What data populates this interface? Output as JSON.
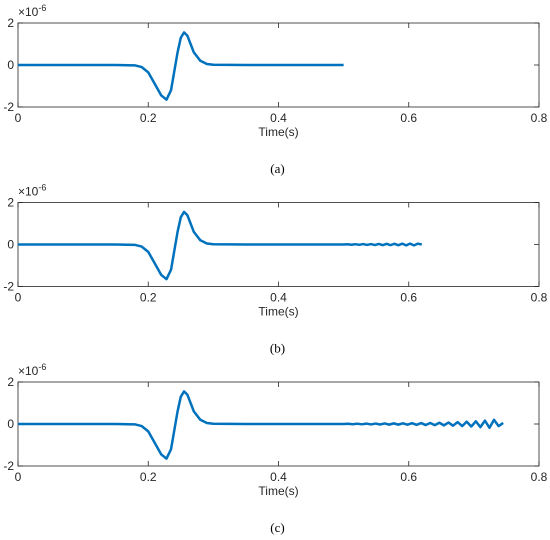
{
  "chart_data": [
    {
      "type": "line",
      "y_multiplier": "×10",
      "y_exponent": "-6",
      "xlabel": "Time(s)",
      "caption": "(a)",
      "xlim": [
        0,
        0.8
      ],
      "xticks": [
        0,
        0.2,
        0.4,
        0.6,
        0.8
      ],
      "ylim": [
        -2,
        2
      ],
      "yticks": [
        -2,
        0,
        2
      ],
      "series": [
        {
          "color": "#0072bd",
          "x": [
            0,
            0.05,
            0.1,
            0.15,
            0.18,
            0.19,
            0.2,
            0.21,
            0.22,
            0.228,
            0.235,
            0.24,
            0.245,
            0.25,
            0.255,
            0.26,
            0.265,
            0.27,
            0.28,
            0.29,
            0.3,
            0.35,
            0.4,
            0.45,
            0.5
          ],
          "values": [
            0,
            0,
            0,
            0,
            -0.02,
            -0.1,
            -0.35,
            -0.9,
            -1.45,
            -1.65,
            -1.2,
            -0.3,
            0.6,
            1.3,
            1.55,
            1.4,
            1.0,
            0.6,
            0.2,
            0.05,
            0.01,
            0,
            0,
            0,
            0
          ]
        }
      ]
    },
    {
      "type": "line",
      "y_multiplier": "×10",
      "y_exponent": "-6",
      "xlabel": "Time(s)",
      "caption": "(b)",
      "xlim": [
        0,
        0.8
      ],
      "xticks": [
        0,
        0.2,
        0.4,
        0.6,
        0.8
      ],
      "ylim": [
        -2,
        2
      ],
      "yticks": [
        -2,
        0,
        2
      ],
      "series": [
        {
          "color": "#0072bd",
          "x": [
            0,
            0.05,
            0.1,
            0.15,
            0.18,
            0.19,
            0.2,
            0.21,
            0.22,
            0.228,
            0.235,
            0.24,
            0.245,
            0.25,
            0.255,
            0.26,
            0.265,
            0.27,
            0.28,
            0.29,
            0.3,
            0.35,
            0.4,
            0.45,
            0.5,
            0.506,
            0.512,
            0.518,
            0.524,
            0.53,
            0.536,
            0.542,
            0.548,
            0.554,
            0.56,
            0.566,
            0.572,
            0.578,
            0.584,
            0.59,
            0.596,
            0.602,
            0.608,
            0.614,
            0.62
          ],
          "values": [
            0,
            0,
            0,
            0,
            -0.02,
            -0.1,
            -0.35,
            -0.9,
            -1.45,
            -1.65,
            -1.2,
            -0.3,
            0.6,
            1.3,
            1.55,
            1.4,
            1.0,
            0.6,
            0.2,
            0.05,
            0.01,
            0,
            0,
            0,
            0,
            0.01,
            -0.01,
            0.015,
            -0.015,
            0.02,
            -0.02,
            0.02,
            -0.025,
            0.025,
            -0.03,
            0.03,
            -0.03,
            0.035,
            -0.035,
            0.04,
            -0.04,
            0.04,
            -0.04,
            0.04,
            0
          ]
        }
      ]
    },
    {
      "type": "line",
      "y_multiplier": "×10",
      "y_exponent": "-6",
      "xlabel": "Time(s)",
      "caption": "(c)",
      "xlim": [
        0,
        0.8
      ],
      "xticks": [
        0,
        0.2,
        0.4,
        0.6,
        0.8
      ],
      "ylim": [
        -2,
        2
      ],
      "yticks": [
        -2,
        0,
        2
      ],
      "series": [
        {
          "color": "#0072bd",
          "x": [
            0,
            0.05,
            0.1,
            0.15,
            0.18,
            0.19,
            0.2,
            0.21,
            0.22,
            0.228,
            0.235,
            0.24,
            0.245,
            0.25,
            0.255,
            0.26,
            0.265,
            0.27,
            0.28,
            0.29,
            0.3,
            0.35,
            0.4,
            0.45,
            0.5,
            0.507,
            0.514,
            0.521,
            0.528,
            0.535,
            0.542,
            0.549,
            0.556,
            0.563,
            0.57,
            0.577,
            0.584,
            0.591,
            0.598,
            0.605,
            0.612,
            0.619,
            0.626,
            0.633,
            0.64,
            0.647,
            0.654,
            0.661,
            0.668,
            0.675,
            0.682,
            0.689,
            0.696,
            0.703,
            0.71,
            0.717,
            0.724,
            0.731,
            0.738,
            0.745
          ],
          "values": [
            0,
            0,
            0,
            0,
            -0.02,
            -0.1,
            -0.35,
            -0.9,
            -1.45,
            -1.65,
            -1.2,
            -0.3,
            0.6,
            1.3,
            1.55,
            1.4,
            1.0,
            0.6,
            0.2,
            0.05,
            0.01,
            0,
            0,
            0,
            0,
            0.01,
            -0.01,
            0.015,
            -0.015,
            0.02,
            -0.02,
            0.02,
            -0.025,
            0.025,
            -0.03,
            0.03,
            -0.03,
            0.035,
            -0.035,
            0.04,
            -0.04,
            0.045,
            -0.05,
            0.05,
            -0.055,
            0.06,
            -0.065,
            0.07,
            -0.08,
            0.09,
            -0.1,
            0.11,
            -0.12,
            0.13,
            -0.15,
            0.16,
            -0.18,
            0.2,
            -0.1,
            0.05
          ]
        }
      ]
    }
  ]
}
